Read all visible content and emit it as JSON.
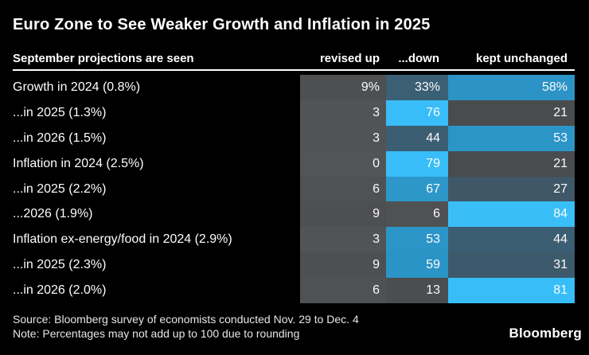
{
  "chart_data": {
    "type": "heatmap",
    "title": "Euro Zone to See Weaker Growth and Inflation in 2025",
    "row_header": "September projections are seen",
    "columns": [
      "revised up",
      "...down",
      "kept unchanged"
    ],
    "rows": [
      "Growth in 2024 (0.8%)",
      "...in 2025 (1.3%)",
      "...in 2026 (1.5%)",
      "Inflation in 2024 (2.5%)",
      "...in 2025 (2.2%)",
      "...2026 (1.9%)",
      "Inflation ex-energy/food in 2024 (2.9%)",
      "...in 2025 (2.3%)",
      "...in 2026 (2.0%)"
    ],
    "values": [
      [
        9,
        33,
        58
      ],
      [
        3,
        76,
        21
      ],
      [
        3,
        44,
        53
      ],
      [
        0,
        79,
        21
      ],
      [
        6,
        67,
        27
      ],
      [
        9,
        6,
        84
      ],
      [
        3,
        53,
        44
      ],
      [
        9,
        59,
        31
      ],
      [
        6,
        13,
        81
      ]
    ],
    "unit": "% of surveyed economists",
    "color_scale": "gray (low) to bright blue (high)",
    "source": "Bloomberg survey of economists conducted Nov. 29 to Dec. 4",
    "note": "Percentages may not add up to 100 due to rounding"
  },
  "header": {
    "title": "Euro Zone to See Weaker Growth and Inflation in 2025"
  },
  "table": {
    "label_header": "September projections are seen",
    "columns": [
      "revised up",
      "...down",
      "kept unchanged"
    ],
    "rows": [
      {
        "label": "Growth in 2024 (0.8%)",
        "cells": [
          {
            "text": "9%",
            "bg": "#4E4F51"
          },
          {
            "text": "33%",
            "bg": "#3B5F75"
          },
          {
            "text": "58%",
            "bg": "#2B93C5"
          }
        ]
      },
      {
        "label": "...in 2025 (1.3%)",
        "cells": [
          {
            "text": "3",
            "bg": "#525355"
          },
          {
            "text": "76",
            "bg": "#38BDF8"
          },
          {
            "text": "21",
            "bg": "#494B4D"
          }
        ]
      },
      {
        "label": "...in 2026 (1.5%)",
        "cells": [
          {
            "text": "3",
            "bg": "#525355"
          },
          {
            "text": "44",
            "bg": "#3B5E73"
          },
          {
            "text": "53",
            "bg": "#2C95C7"
          }
        ]
      },
      {
        "label": "Inflation in 2024 (2.5%)",
        "cells": [
          {
            "text": "0",
            "bg": "#535456"
          },
          {
            "text": "79",
            "bg": "#38BDF8"
          },
          {
            "text": "21",
            "bg": "#494B4D"
          }
        ]
      },
      {
        "label": "...in 2025 (2.2%)",
        "cells": [
          {
            "text": "6",
            "bg": "#505153"
          },
          {
            "text": "67",
            "bg": "#2D97C9"
          },
          {
            "text": "27",
            "bg": "#3F5766"
          }
        ]
      },
      {
        "label": "...2026 (1.9%)",
        "cells": [
          {
            "text": "9",
            "bg": "#4E4F51"
          },
          {
            "text": "6",
            "bg": "#505153"
          },
          {
            "text": "84",
            "bg": "#39BEF8"
          }
        ]
      },
      {
        "label": "Inflation ex-energy/food in 2024 (2.9%)",
        "cells": [
          {
            "text": "3",
            "bg": "#525355"
          },
          {
            "text": "53",
            "bg": "#2C95C7"
          },
          {
            "text": "44",
            "bg": "#3B5E73"
          }
        ]
      },
      {
        "label": "...in 2025 (2.3%)",
        "cells": [
          {
            "text": "9",
            "bg": "#4E4F51"
          },
          {
            "text": "59",
            "bg": "#2B94C6"
          },
          {
            "text": "31",
            "bg": "#3D5A6C"
          }
        ]
      },
      {
        "label": "...in 2026 (2.0%)",
        "cells": [
          {
            "text": "6",
            "bg": "#505153"
          },
          {
            "text": "13",
            "bg": "#4B4D4F"
          },
          {
            "text": "81",
            "bg": "#37BDF8"
          }
        ]
      }
    ]
  },
  "footer": {
    "source": "Source: Bloomberg survey of economists conducted Nov. 29 to Dec. 4",
    "note": "Note: Percentages may not add up to 100 due to rounding",
    "brand": "Bloomberg"
  },
  "colors": {
    "background": "#000000",
    "text": "#ffffff",
    "footer_text": "#e6e6e6",
    "rule": "#ffffff",
    "accent_bright_blue": "#38bdf8",
    "accent_mid_blue": "#2b94c6",
    "accent_slate_blue": "#3b5f75",
    "neutral_gray": "#515254"
  }
}
